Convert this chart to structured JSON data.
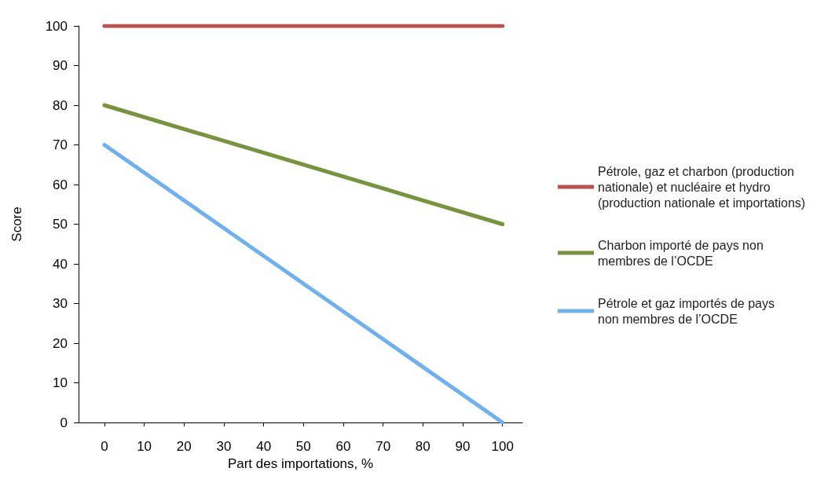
{
  "chart_data": {
    "type": "line",
    "xlabel": "Part des importations, %",
    "ylabel": "Score",
    "x": [
      0,
      100
    ],
    "xlim": [
      -6.5,
      105
    ],
    "xticks": [
      0,
      10,
      20,
      30,
      40,
      50,
      60,
      70,
      80,
      90,
      100
    ],
    "ylim": [
      0,
      100
    ],
    "yticks": [
      0,
      10,
      20,
      30,
      40,
      50,
      60,
      70,
      80,
      90,
      100
    ],
    "legend": "right",
    "marker": "none",
    "line_style": "solid",
    "series": [
      {
        "name": "Pétrole, gaz et charbon (production nationale) et nucléaire et hydro (production nationale et importations)",
        "color": "#c0504d",
        "values": [
          100,
          100
        ]
      },
      {
        "name": "Charbon importé de pays non membres de l’OCDE",
        "color": "#77933c",
        "values": [
          80,
          50
        ]
      },
      {
        "name": "Pétrole et gaz importés de pays non membres de l’OCDE",
        "color": "#6fb1ef",
        "values": [
          70,
          0
        ]
      }
    ]
  }
}
